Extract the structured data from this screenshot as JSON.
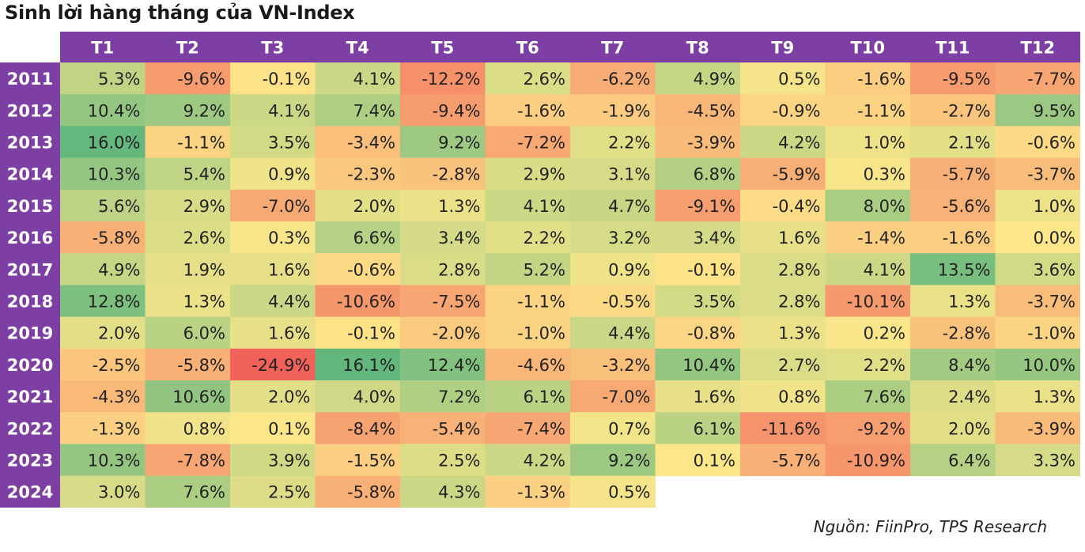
{
  "title": "Sinh lời hàng tháng của VN-Index",
  "source": "Nguồn: FiinPro, TPS Research",
  "colors": {
    "header_bg": "#7d3fa3",
    "row_label_bg": "#7d3fa3",
    "scale_low": "#f0625a",
    "scale_mid": "#fde78a",
    "scale_high": "#63b77d"
  },
  "chart_data": {
    "type": "heatmap",
    "title": "Sinh lời hàng tháng của VN-Index",
    "x": [
      "T1",
      "T2",
      "T3",
      "T4",
      "T5",
      "T6",
      "T7",
      "T8",
      "T9",
      "T10",
      "T11",
      "T12"
    ],
    "y": [
      "2011",
      "2012",
      "2013",
      "2014",
      "2015",
      "2016",
      "2017",
      "2018",
      "2019",
      "2020",
      "2021",
      "2022",
      "2023",
      "2024"
    ],
    "labels": [
      [
        "5.3%",
        "-9.6%",
        "-0.1%",
        "4.1%",
        "-12.2%",
        "2.6%",
        "-6.2%",
        "4.9%",
        "0.5%",
        "-1.6%",
        "-9.5%",
        "-7.7%"
      ],
      [
        "10.4%",
        "9.2%",
        "4.1%",
        "7.4%",
        "-9.4%",
        "-1.6%",
        "-1.9%",
        "-4.5%",
        "-0.9%",
        "-1.1%",
        "-2.7%",
        "9.5%"
      ],
      [
        "16.0%",
        "-1.1%",
        "3.5%",
        "-3.4%",
        "9.2%",
        "-7.2%",
        "2.2%",
        "-3.9%",
        "4.2%",
        "1.0%",
        "2.1%",
        "-0.6%"
      ],
      [
        "10.3%",
        "5.4%",
        "0.9%",
        "-2.3%",
        "-2.8%",
        "2.9%",
        "3.1%",
        "6.8%",
        "-5.9%",
        "0.3%",
        "-5.7%",
        "-3.7%"
      ],
      [
        "5.6%",
        "2.9%",
        "-7.0%",
        "2.0%",
        "1.3%",
        "4.1%",
        "4.7%",
        "-9.1%",
        "-0.4%",
        "8.0%",
        "-5.6%",
        "1.0%"
      ],
      [
        "-5.8%",
        "2.6%",
        "0.3%",
        "6.6%",
        "3.4%",
        "2.2%",
        "3.2%",
        "3.4%",
        "1.6%",
        "-1.4%",
        "-1.6%",
        "0.0%"
      ],
      [
        "4.9%",
        "1.9%",
        "1.6%",
        "-0.6%",
        "2.8%",
        "5.2%",
        "0.9%",
        "-0.1%",
        "2.8%",
        "4.1%",
        "13.5%",
        "3.6%"
      ],
      [
        "12.8%",
        "1.3%",
        "4.4%",
        "-10.6%",
        "-7.5%",
        "-1.1%",
        "-0.5%",
        "3.5%",
        "2.8%",
        "-10.1%",
        "1.3%",
        "-3.7%"
      ],
      [
        "2.0%",
        "6.0%",
        "1.6%",
        "-0.1%",
        "-2.0%",
        "-1.0%",
        "4.4%",
        "-0.8%",
        "1.3%",
        "0.2%",
        "-2.8%",
        "-1.0%"
      ],
      [
        "-2.5%",
        "-5.8%",
        "-24.9%",
        "16.1%",
        "12.4%",
        "-4.6%",
        "-3.2%",
        "10.4%",
        "2.7%",
        "2.2%",
        "8.4%",
        "10.0%"
      ],
      [
        "-4.3%",
        "10.6%",
        "2.0%",
        "4.0%",
        "7.2%",
        "6.1%",
        "-7.0%",
        "1.6%",
        "0.8%",
        "7.6%",
        "2.4%",
        "1.3%"
      ],
      [
        "-1.3%",
        "0.8%",
        "0.1%",
        "-8.4%",
        "-5.4%",
        "-7.4%",
        "0.7%",
        "6.1%",
        "-11.6%",
        "-9.2%",
        "2.0%",
        "-3.9%"
      ],
      [
        "10.3%",
        "-7.8%",
        "3.9%",
        "-1.5%",
        "2.5%",
        "4.2%",
        "9.2%",
        "0.1%",
        "-5.7%",
        "-10.9%",
        "6.4%",
        "3.3%"
      ],
      [
        "3.0%",
        "7.6%",
        "2.5%",
        "-5.8%",
        "4.3%",
        "-1.3%",
        "0.5%",
        "",
        "",
        "",
        "",
        ""
      ]
    ],
    "color_scale": "red-yellow-green, diverging at 0"
  }
}
